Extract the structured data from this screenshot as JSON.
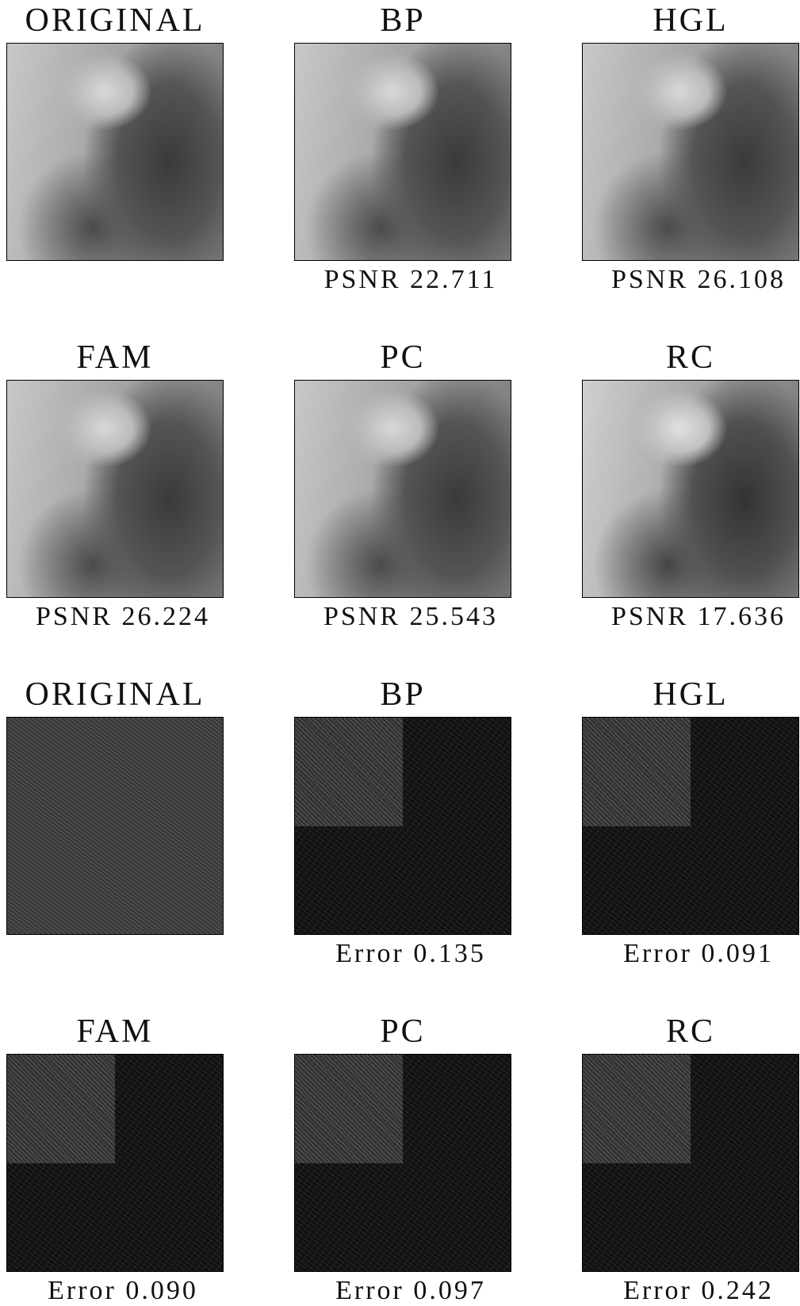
{
  "figure": {
    "rows": [
      {
        "panels": [
          {
            "title": "ORIGINAL"
          },
          {
            "title": "BP",
            "caption": "PSNR 22.711"
          },
          {
            "title": "HGL",
            "caption": "PSNR 26.108"
          }
        ]
      },
      {
        "panels": [
          {
            "title": "FAM",
            "caption": "PSNR 26.224"
          },
          {
            "title": "PC",
            "caption": "PSNR 25.543"
          },
          {
            "title": "RC",
            "caption": "PSNR 17.636"
          }
        ]
      },
      {
        "panels": [
          {
            "title": "ORIGINAL"
          },
          {
            "title": "BP",
            "caption": "Error 0.135"
          },
          {
            "title": "HGL",
            "caption": "Error 0.091"
          }
        ]
      },
      {
        "panels": [
          {
            "title": "FAM",
            "caption": "Error 0.090"
          },
          {
            "title": "PC",
            "caption": "Error 0.097"
          },
          {
            "title": "RC",
            "caption": "Error 0.242"
          }
        ]
      }
    ]
  }
}
